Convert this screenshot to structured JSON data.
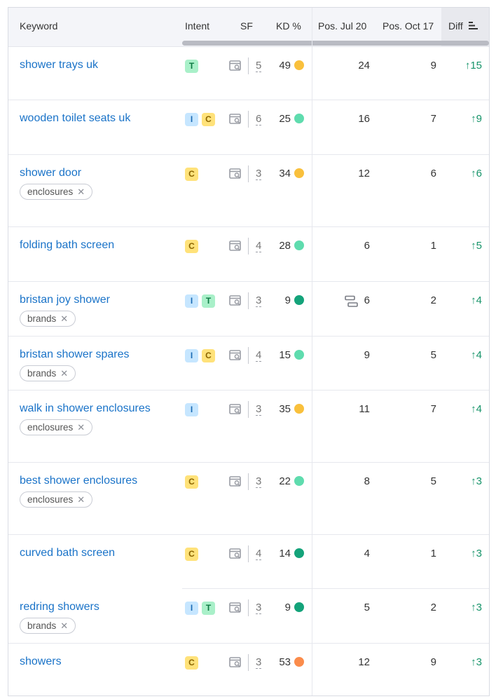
{
  "columns": {
    "keyword": "Keyword",
    "intent": "Intent",
    "sf": "SF",
    "kd": "KD %",
    "pos_jul": "Pos. Jul 20",
    "pos_oct": "Pos. Oct 17",
    "diff": "Diff"
  },
  "kd_colors": {
    "hard": "#f9c03c",
    "possible": "#5fdcae",
    "easy": "#14a37a",
    "very_hard": "#fb8c4b"
  },
  "rows": [
    {
      "keyword": "shower trays uk",
      "intents": [
        "T"
      ],
      "sf": "5",
      "kd": "49",
      "kd_level": "hard",
      "pos_jul": "24",
      "pos_oct": "9",
      "diff": "↑15"
    },
    {
      "keyword": "wooden toilet seats uk",
      "intents": [
        "I",
        "C"
      ],
      "sf": "6",
      "kd": "25",
      "kd_level": "possible",
      "pos_jul": "16",
      "pos_oct": "7",
      "diff": "↑9"
    },
    {
      "keyword": "shower door",
      "tag": "enclosures",
      "intents": [
        "C"
      ],
      "sf": "3",
      "kd": "34",
      "kd_level": "hard",
      "pos_jul": "12",
      "pos_oct": "6",
      "diff": "↑6"
    },
    {
      "keyword": "folding bath screen",
      "intents": [
        "C"
      ],
      "sf": "4",
      "kd": "28",
      "kd_level": "possible",
      "pos_jul": "6",
      "pos_oct": "1",
      "diff": "↑5"
    },
    {
      "keyword": "bristan joy shower",
      "tag": "brands",
      "intents": [
        "I",
        "T"
      ],
      "sf": "3",
      "kd": "9",
      "kd_level": "easy",
      "pos_jul": "6",
      "pos_oct": "2",
      "diff": "↑4",
      "serp_feature_icon": "serp-feature-icon"
    },
    {
      "keyword": "bristan shower spares",
      "tag": "brands",
      "intents": [
        "I",
        "C"
      ],
      "sf": "4",
      "kd": "15",
      "kd_level": "possible",
      "pos_jul": "9",
      "pos_oct": "5",
      "diff": "↑4"
    },
    {
      "keyword": "walk in shower enclosures",
      "tag": "enclosures",
      "intents": [
        "I"
      ],
      "sf": "3",
      "kd": "35",
      "kd_level": "hard",
      "pos_jul": "11",
      "pos_oct": "7",
      "diff": "↑4"
    },
    {
      "keyword": "best shower enclosures",
      "tag": "enclosures",
      "intents": [
        "C"
      ],
      "sf": "3",
      "kd": "22",
      "kd_level": "possible",
      "pos_jul": "8",
      "pos_oct": "5",
      "diff": "↑3"
    },
    {
      "keyword": "curved bath screen",
      "intents": [
        "C"
      ],
      "sf": "4",
      "kd": "14",
      "kd_level": "easy",
      "pos_jul": "4",
      "pos_oct": "1",
      "diff": "↑3"
    },
    {
      "keyword": "redring showers",
      "tag": "brands",
      "intents": [
        "I",
        "T"
      ],
      "sf": "3",
      "kd": "9",
      "kd_level": "easy",
      "pos_jul": "5",
      "pos_oct": "2",
      "diff": "↑3"
    },
    {
      "keyword": "showers",
      "intents": [
        "C"
      ],
      "sf": "3",
      "kd": "53",
      "kd_level": "very_hard",
      "pos_jul": "12",
      "pos_oct": "9",
      "diff": "↑3"
    }
  ]
}
